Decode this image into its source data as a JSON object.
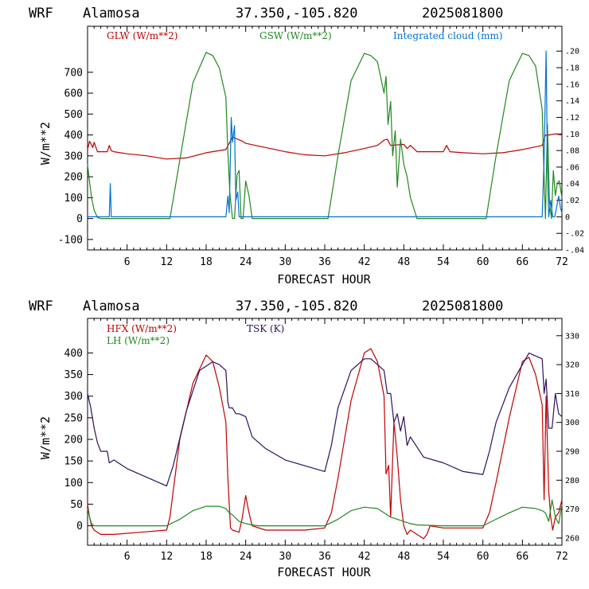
{
  "header": {
    "model": "WRF",
    "site": "Alamosa",
    "coords": "37.350,-105.820",
    "run": "2025081800"
  },
  "colors": {
    "red": "#c00000",
    "green": "#208820",
    "blue": "#0070d0",
    "purple": "#301060"
  },
  "chart_data": [
    {
      "type": "line",
      "xlabel": "FORECAST HOUR",
      "ylabel": "W/m**2",
      "xlim": [
        0,
        72
      ],
      "ylim": [
        -150,
        920
      ],
      "xticks": [
        6,
        12,
        18,
        24,
        30,
        36,
        42,
        48,
        54,
        60,
        66,
        72
      ],
      "yticks": [
        -100,
        0,
        100,
        200,
        300,
        400,
        500,
        600,
        700
      ],
      "y2lim": [
        -0.04,
        0.23
      ],
      "y2ticks": [
        -0.04,
        -0.02,
        0,
        0.02,
        0.04,
        0.06,
        0.08,
        0.1,
        0.12,
        0.14,
        0.16,
        0.18,
        0.2
      ],
      "y2tick_labels": [
        "-.04",
        "-.02",
        "0",
        ".02",
        ".04",
        ".06",
        ".08",
        ".10",
        ".12",
        ".14",
        ".16",
        ".18",
        ".20"
      ],
      "legend": [
        "GLW (W/m**2)",
        "GSW (W/m**2)",
        "Integrated cloud (mm)"
      ],
      "series": [
        {
          "name": "GLW (W/m**2)",
          "axis": "left",
          "color": "red",
          "x": [
            0,
            0.3,
            0.8,
            1,
            1.5,
            2,
            3,
            3.3,
            3.6,
            4,
            6,
            9,
            12,
            15,
            18,
            21,
            22,
            23.5,
            24,
            27,
            30,
            33,
            36,
            39,
            42,
            44,
            45,
            45.5,
            46,
            48,
            48.5,
            49,
            50,
            51,
            52,
            54,
            54.5,
            55,
            57,
            60,
            63,
            66,
            69,
            69.5,
            70,
            71,
            72
          ],
          "y": [
            330,
            370,
            340,
            365,
            320,
            320,
            320,
            350,
            325,
            320,
            310,
            300,
            285,
            290,
            315,
            330,
            390,
            370,
            360,
            340,
            320,
            305,
            300,
            315,
            335,
            350,
            375,
            380,
            350,
            355,
            335,
            350,
            320,
            320,
            320,
            320,
            350,
            320,
            315,
            310,
            315,
            330,
            350,
            400,
            400,
            405,
            400
          ]
        },
        {
          "name": "GSW (W/m**2)",
          "axis": "left",
          "color": "green",
          "x": [
            0,
            0.2,
            0.6,
            1,
            1.5,
            2,
            12.5,
            14,
            16,
            18,
            19,
            20,
            21,
            21.3,
            21.6,
            22,
            22.3,
            22.7,
            23,
            23.3,
            23.6,
            24,
            24.5,
            25,
            36.5,
            38,
            40,
            42,
            43,
            44,
            45,
            45.3,
            45.6,
            46,
            46.3,
            46.7,
            47,
            47.5,
            48,
            48.5,
            49,
            49.5,
            50,
            60.5,
            62,
            64,
            66,
            67,
            68,
            69,
            69.2,
            69.5,
            69.8,
            70.1,
            70.4,
            70.7,
            71,
            71.3,
            71.6,
            72
          ],
          "y": [
            260,
            200,
            100,
            40,
            5,
            0,
            0,
            280,
            650,
            795,
            780,
            720,
            580,
            320,
            120,
            0,
            0,
            210,
            230,
            0,
            0,
            180,
            110,
            0,
            0,
            300,
            660,
            790,
            780,
            750,
            600,
            680,
            450,
            560,
            300,
            420,
            150,
            380,
            260,
            200,
            100,
            50,
            0,
            0,
            300,
            660,
            790,
            780,
            730,
            520,
            300,
            0,
            450,
            80,
            0,
            230,
            110,
            170,
            180,
            100
          ]
        },
        {
          "name": "Integrated cloud (mm)",
          "axis": "right",
          "color": "blue",
          "x": [
            0,
            3.3,
            3.45,
            3.6,
            3.8,
            21,
            21.3,
            21.5,
            21.8,
            22,
            22.3,
            22.5,
            22.8,
            23,
            44.5,
            45,
            69,
            69.3,
            69.6,
            69.8,
            70,
            70.3,
            70.6,
            70.9,
            71.2,
            71.5,
            71.8,
            72
          ],
          "y": [
            0,
            0,
            0.04,
            0,
            0,
            0,
            0.025,
            0.005,
            0.12,
            0.09,
            0.11,
            0.02,
            0.03,
            0,
            0,
            0,
            0,
            0.07,
            0.2,
            0.06,
            0,
            0.02,
            0,
            0,
            0.012,
            0.025,
            0.01,
            0.005
          ]
        }
      ]
    },
    {
      "type": "line",
      "xlabel": "FORECAST HOUR",
      "ylabel": "W/m**2",
      "xlim": [
        0,
        72
      ],
      "ylim": [
        -45,
        480
      ],
      "xticks": [
        6,
        12,
        18,
        24,
        30,
        36,
        42,
        48,
        54,
        60,
        66,
        72
      ],
      "yticks": [
        0,
        50,
        100,
        150,
        200,
        250,
        300,
        350,
        400
      ],
      "y2lim": [
        257.5,
        336
      ],
      "y2ticks": [
        260,
        270,
        280,
        290,
        300,
        310,
        320,
        330
      ],
      "legend": [
        "HFX (W/m**2)",
        "LH (W/m**2)",
        "TSK (K)"
      ],
      "series": [
        {
          "name": "HFX (W/m**2)",
          "axis": "left",
          "color": "red",
          "x": [
            0,
            0.3,
            0.6,
            1,
            1.5,
            2,
            4,
            8,
            12,
            12.5,
            13,
            14,
            16,
            18,
            19,
            20,
            21,
            21.3,
            21.7,
            22,
            23,
            23.5,
            24,
            24.5,
            25,
            27,
            30,
            33,
            36,
            37,
            38,
            40,
            42,
            43,
            44,
            45,
            45.3,
            45.7,
            46,
            46.5,
            47,
            47.5,
            48,
            48.5,
            49,
            50,
            51,
            51.5,
            52,
            54,
            57,
            60,
            61,
            62,
            64,
            66,
            67,
            68,
            69,
            69.3,
            69.6,
            70,
            70.3,
            70.6,
            71,
            71.5,
            72
          ],
          "y": [
            50,
            20,
            0,
            -10,
            -15,
            -20,
            -20,
            -15,
            -10,
            20,
            80,
            200,
            330,
            395,
            380,
            320,
            240,
            110,
            -5,
            -10,
            -15,
            20,
            70,
            30,
            0,
            -10,
            -10,
            -10,
            -5,
            30,
            110,
            290,
            400,
            410,
            380,
            300,
            120,
            140,
            20,
            240,
            160,
            60,
            0,
            -20,
            -10,
            -20,
            -30,
            -20,
            0,
            -5,
            -5,
            -5,
            30,
            100,
            250,
            380,
            390,
            350,
            280,
            60,
            300,
            80,
            20,
            -10,
            20,
            30,
            60
          ]
        },
        {
          "name": "LH (W/m**2)",
          "axis": "left",
          "color": "green",
          "x": [
            0,
            0.3,
            0.6,
            1,
            2,
            6,
            10,
            12,
            14,
            16,
            18,
            20,
            21,
            21.5,
            22,
            23,
            24,
            25,
            26,
            30,
            36,
            38,
            40,
            42,
            44,
            45,
            45.5,
            46,
            48,
            49,
            50,
            54,
            58,
            60,
            62,
            64,
            66,
            68,
            69,
            69.5,
            70,
            70.5,
            71,
            71.5,
            72
          ],
          "y": [
            40,
            20,
            5,
            0,
            0,
            0,
            0,
            0,
            15,
            35,
            45,
            45,
            40,
            30,
            25,
            10,
            5,
            2,
            0,
            0,
            0,
            15,
            35,
            43,
            40,
            30,
            25,
            20,
            10,
            5,
            2,
            0,
            0,
            0,
            15,
            30,
            43,
            40,
            35,
            30,
            10,
            60,
            20,
            5,
            50
          ]
        },
        {
          "name": "TSK (K)",
          "axis": "right",
          "color": "purple",
          "x": [
            0,
            0.5,
            1,
            1.5,
            2,
            3,
            3.3,
            4,
            6,
            8,
            10,
            12,
            13,
            15,
            17,
            19,
            20,
            21,
            21.3,
            21.5,
            22,
            22.5,
            23,
            24,
            25,
            27,
            30,
            33,
            36,
            37,
            38,
            40,
            42,
            43,
            44,
            45,
            45.5,
            46,
            46.5,
            47,
            47.5,
            48,
            48.5,
            49,
            51,
            54,
            57,
            60,
            61,
            62,
            64,
            66,
            67,
            68,
            69,
            69.3,
            69.6,
            70,
            70.5,
            71,
            71.5,
            72
          ],
          "y": [
            310,
            305,
            298,
            293,
            290,
            290,
            286,
            287,
            284,
            282,
            280,
            278,
            285,
            304,
            318,
            321,
            320,
            318,
            307,
            305,
            305,
            303,
            303,
            302,
            295,
            291,
            287,
            285,
            283,
            292,
            305,
            318,
            322,
            322,
            320,
            318,
            310,
            310,
            300,
            303,
            297,
            302,
            292,
            295,
            288,
            286,
            283,
            282,
            290,
            300,
            312,
            320,
            324,
            323,
            322,
            310,
            315,
            298,
            298,
            310,
            303,
            302
          ]
        }
      ]
    }
  ]
}
